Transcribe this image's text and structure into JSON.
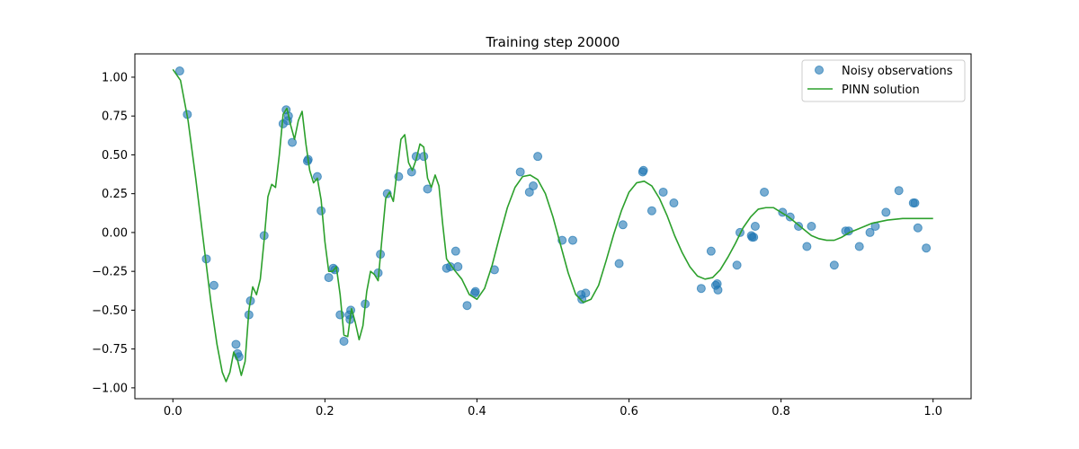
{
  "chart_data": {
    "type": "scatter+line",
    "title": "Training step 20000",
    "xlabel": "",
    "ylabel": "",
    "xlim": [
      -0.05,
      1.05
    ],
    "ylim": [
      -1.07,
      1.15
    ],
    "xticks": [
      0.0,
      0.2,
      0.4,
      0.6,
      0.8,
      1.0
    ],
    "xtick_labels": [
      "0.0",
      "0.2",
      "0.4",
      "0.6",
      "0.8",
      "1.0"
    ],
    "yticks": [
      -1.0,
      -0.75,
      -0.5,
      -0.25,
      0.0,
      0.25,
      0.5,
      0.75,
      1.0
    ],
    "ytick_labels": [
      "−1.00",
      "−0.75",
      "−0.50",
      "−0.25",
      "0.00",
      "0.25",
      "0.50",
      "0.75",
      "1.00"
    ],
    "grid": false,
    "legend": {
      "position": "top-right",
      "entries": [
        "Noisy observations",
        "PINN solution"
      ]
    },
    "colors": {
      "scatter": "#1f77b4",
      "line": "#2ca02c"
    },
    "series": [
      {
        "name": "Noisy observations",
        "kind": "scatter",
        "points": [
          [
            0.009,
            1.04
          ],
          [
            0.019,
            0.76
          ],
          [
            0.044,
            -0.17
          ],
          [
            0.054,
            -0.34
          ],
          [
            0.083,
            -0.72
          ],
          [
            0.085,
            -0.78
          ],
          [
            0.087,
            -0.8
          ],
          [
            0.1,
            -0.53
          ],
          [
            0.102,
            -0.44
          ],
          [
            0.12,
            -0.02
          ],
          [
            0.145,
            0.7
          ],
          [
            0.149,
            0.79
          ],
          [
            0.151,
            0.72
          ],
          [
            0.152,
            0.75
          ],
          [
            0.157,
            0.58
          ],
          [
            0.177,
            0.46
          ],
          [
            0.178,
            0.47
          ],
          [
            0.19,
            0.36
          ],
          [
            0.195,
            0.14
          ],
          [
            0.205,
            -0.29
          ],
          [
            0.211,
            -0.23
          ],
          [
            0.213,
            -0.24
          ],
          [
            0.22,
            -0.53
          ],
          [
            0.225,
            -0.7
          ],
          [
            0.232,
            -0.53
          ],
          [
            0.233,
            -0.56
          ],
          [
            0.234,
            -0.5
          ],
          [
            0.253,
            -0.46
          ],
          [
            0.27,
            -0.26
          ],
          [
            0.273,
            -0.14
          ],
          [
            0.282,
            0.25
          ],
          [
            0.297,
            0.36
          ],
          [
            0.314,
            0.39
          ],
          [
            0.32,
            0.49
          ],
          [
            0.33,
            0.49
          ],
          [
            0.335,
            0.28
          ],
          [
            0.36,
            -0.23
          ],
          [
            0.365,
            -0.22
          ],
          [
            0.372,
            -0.12
          ],
          [
            0.375,
            -0.22
          ],
          [
            0.387,
            -0.47
          ],
          [
            0.397,
            -0.39
          ],
          [
            0.398,
            -0.38
          ],
          [
            0.423,
            -0.24
          ],
          [
            0.457,
            0.39
          ],
          [
            0.469,
            0.26
          ],
          [
            0.474,
            0.3
          ],
          [
            0.48,
            0.49
          ],
          [
            0.512,
            -0.05
          ],
          [
            0.526,
            -0.05
          ],
          [
            0.537,
            -0.4
          ],
          [
            0.538,
            -0.43
          ],
          [
            0.543,
            -0.39
          ],
          [
            0.587,
            -0.2
          ],
          [
            0.592,
            0.05
          ],
          [
            0.618,
            0.39
          ],
          [
            0.619,
            0.4
          ],
          [
            0.63,
            0.14
          ],
          [
            0.645,
            0.26
          ],
          [
            0.659,
            0.19
          ],
          [
            0.695,
            -0.36
          ],
          [
            0.708,
            -0.12
          ],
          [
            0.714,
            -0.34
          ],
          [
            0.716,
            -0.33
          ],
          [
            0.717,
            -0.37
          ],
          [
            0.742,
            -0.21
          ],
          [
            0.746,
            0.0
          ],
          [
            0.761,
            -0.02
          ],
          [
            0.762,
            -0.03
          ],
          [
            0.764,
            -0.03
          ],
          [
            0.766,
            0.04
          ],
          [
            0.778,
            0.26
          ],
          [
            0.802,
            0.13
          ],
          [
            0.812,
            0.1
          ],
          [
            0.823,
            0.04
          ],
          [
            0.834,
            -0.09
          ],
          [
            0.84,
            0.04
          ],
          [
            0.87,
            -0.21
          ],
          [
            0.885,
            0.01
          ],
          [
            0.889,
            0.01
          ],
          [
            0.903,
            -0.09
          ],
          [
            0.917,
            0.0
          ],
          [
            0.924,
            0.04
          ],
          [
            0.938,
            0.13
          ],
          [
            0.955,
            0.27
          ],
          [
            0.974,
            0.19
          ],
          [
            0.976,
            0.19
          ],
          [
            0.98,
            0.03
          ],
          [
            0.991,
            -0.1
          ]
        ]
      },
      {
        "name": "PINN solution",
        "kind": "line",
        "points": [
          [
            0.0,
            1.05
          ],
          [
            0.01,
            0.98
          ],
          [
            0.02,
            0.72
          ],
          [
            0.03,
            0.35
          ],
          [
            0.04,
            -0.05
          ],
          [
            0.05,
            -0.45
          ],
          [
            0.058,
            -0.72
          ],
          [
            0.065,
            -0.9
          ],
          [
            0.07,
            -0.96
          ],
          [
            0.075,
            -0.9
          ],
          [
            0.08,
            -0.77
          ],
          [
            0.085,
            -0.82
          ],
          [
            0.09,
            -0.92
          ],
          [
            0.095,
            -0.83
          ],
          [
            0.1,
            -0.5
          ],
          [
            0.105,
            -0.35
          ],
          [
            0.11,
            -0.4
          ],
          [
            0.115,
            -0.3
          ],
          [
            0.12,
            -0.05
          ],
          [
            0.125,
            0.23
          ],
          [
            0.13,
            0.31
          ],
          [
            0.135,
            0.29
          ],
          [
            0.14,
            0.5
          ],
          [
            0.145,
            0.76
          ],
          [
            0.15,
            0.8
          ],
          [
            0.155,
            0.69
          ],
          [
            0.16,
            0.6
          ],
          [
            0.165,
            0.72
          ],
          [
            0.17,
            0.78
          ],
          [
            0.175,
            0.57
          ],
          [
            0.18,
            0.4
          ],
          [
            0.185,
            0.32
          ],
          [
            0.19,
            0.35
          ],
          [
            0.195,
            0.21
          ],
          [
            0.2,
            -0.06
          ],
          [
            0.205,
            -0.25
          ],
          [
            0.21,
            -0.25
          ],
          [
            0.215,
            -0.22
          ],
          [
            0.22,
            -0.4
          ],
          [
            0.225,
            -0.66
          ],
          [
            0.23,
            -0.67
          ],
          [
            0.235,
            -0.49
          ],
          [
            0.24,
            -0.58
          ],
          [
            0.245,
            -0.69
          ],
          [
            0.25,
            -0.6
          ],
          [
            0.255,
            -0.38
          ],
          [
            0.26,
            -0.25
          ],
          [
            0.265,
            -0.27
          ],
          [
            0.27,
            -0.31
          ],
          [
            0.275,
            -0.04
          ],
          [
            0.28,
            0.22
          ],
          [
            0.285,
            0.26
          ],
          [
            0.29,
            0.2
          ],
          [
            0.295,
            0.4
          ],
          [
            0.3,
            0.6
          ],
          [
            0.305,
            0.63
          ],
          [
            0.31,
            0.45
          ],
          [
            0.315,
            0.4
          ],
          [
            0.32,
            0.47
          ],
          [
            0.325,
            0.57
          ],
          [
            0.33,
            0.55
          ],
          [
            0.335,
            0.35
          ],
          [
            0.34,
            0.29
          ],
          [
            0.345,
            0.37
          ],
          [
            0.35,
            0.3
          ],
          [
            0.355,
            0.05
          ],
          [
            0.36,
            -0.17
          ],
          [
            0.37,
            -0.24
          ],
          [
            0.38,
            -0.3
          ],
          [
            0.39,
            -0.4
          ],
          [
            0.4,
            -0.43
          ],
          [
            0.41,
            -0.36
          ],
          [
            0.42,
            -0.21
          ],
          [
            0.43,
            -0.02
          ],
          [
            0.44,
            0.16
          ],
          [
            0.45,
            0.29
          ],
          [
            0.46,
            0.36
          ],
          [
            0.47,
            0.37
          ],
          [
            0.48,
            0.34
          ],
          [
            0.49,
            0.25
          ],
          [
            0.5,
            0.1
          ],
          [
            0.51,
            -0.08
          ],
          [
            0.52,
            -0.26
          ],
          [
            0.53,
            -0.4
          ],
          [
            0.54,
            -0.45
          ],
          [
            0.55,
            -0.43
          ],
          [
            0.56,
            -0.34
          ],
          [
            0.57,
            -0.18
          ],
          [
            0.58,
            -0.01
          ],
          [
            0.59,
            0.14
          ],
          [
            0.6,
            0.26
          ],
          [
            0.61,
            0.32
          ],
          [
            0.62,
            0.33
          ],
          [
            0.63,
            0.3
          ],
          [
            0.64,
            0.22
          ],
          [
            0.65,
            0.11
          ],
          [
            0.66,
            -0.02
          ],
          [
            0.67,
            -0.13
          ],
          [
            0.68,
            -0.22
          ],
          [
            0.69,
            -0.28
          ],
          [
            0.7,
            -0.3
          ],
          [
            0.71,
            -0.29
          ],
          [
            0.72,
            -0.24
          ],
          [
            0.73,
            -0.16
          ],
          [
            0.74,
            -0.07
          ],
          [
            0.75,
            0.03
          ],
          [
            0.76,
            0.1
          ],
          [
            0.77,
            0.15
          ],
          [
            0.78,
            0.16
          ],
          [
            0.79,
            0.16
          ],
          [
            0.8,
            0.13
          ],
          [
            0.81,
            0.1
          ],
          [
            0.82,
            0.06
          ],
          [
            0.83,
            0.02
          ],
          [
            0.84,
            -0.02
          ],
          [
            0.85,
            -0.04
          ],
          [
            0.86,
            -0.05
          ],
          [
            0.87,
            -0.05
          ],
          [
            0.88,
            -0.03
          ],
          [
            0.89,
            0.0
          ],
          [
            0.9,
            0.02
          ],
          [
            0.91,
            0.04
          ],
          [
            0.92,
            0.06
          ],
          [
            0.93,
            0.07
          ],
          [
            0.94,
            0.08
          ],
          [
            0.95,
            0.085
          ],
          [
            0.96,
            0.09
          ],
          [
            0.97,
            0.09
          ],
          [
            0.98,
            0.09
          ],
          [
            0.99,
            0.09
          ],
          [
            1.0,
            0.09
          ]
        ]
      }
    ]
  }
}
